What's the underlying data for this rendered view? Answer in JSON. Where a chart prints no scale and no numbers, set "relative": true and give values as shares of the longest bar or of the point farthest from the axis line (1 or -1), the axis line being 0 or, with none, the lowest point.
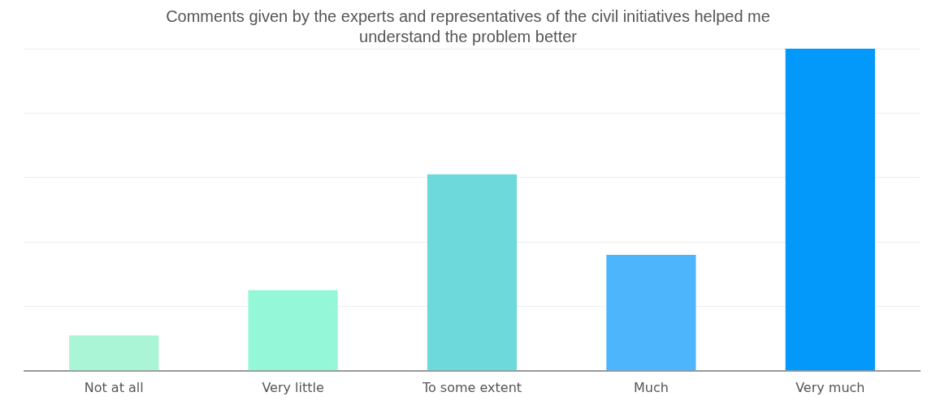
{
  "chart_data": {
    "type": "bar",
    "title": "Comments given by the experts and representatives of the civil initiatives helped me understand the problem better",
    "categories": [
      "Not at all",
      "Very little",
      "To some extent",
      "Much",
      "Very much"
    ],
    "values": [
      0.11,
      0.25,
      0.61,
      0.36,
      1
    ],
    "colors": [
      "#a9f5d6",
      "#94f7d8",
      "#6dd9db",
      "#4cb5fb",
      "#0399fb"
    ],
    "relative": true,
    "grid": "y"
  }
}
